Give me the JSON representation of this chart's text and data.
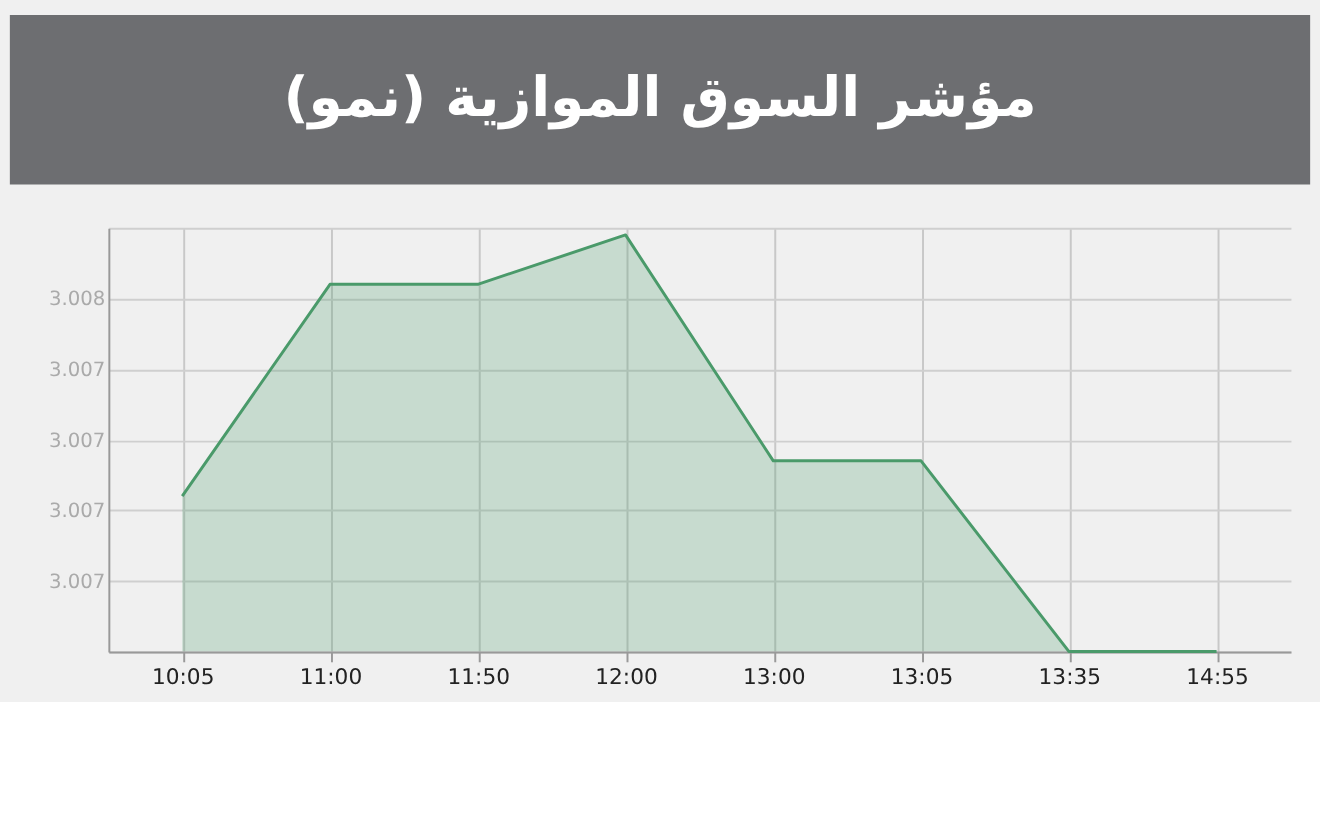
{
  "chart_data": {
    "type": "area",
    "title": "مؤشر السوق الموازية (نمو)",
    "categories": [
      "10:05",
      "11:00",
      "11:50",
      "12:00",
      "13:00",
      "13:05",
      "13:35",
      "14:55"
    ],
    "series": [
      {
        "color": "#4a9a6a",
        "values": [
          3.00722,
          3.00752,
          3.00752,
          3.00759,
          3.00727,
          3.00727,
          3.007,
          3.007
        ]
      }
    ],
    "ylim": [
      3.007,
      3.0076
    ],
    "yticks": [
      {
        "value": 3.007,
        "label": null
      },
      {
        "value": 3.0071,
        "label": "3.007"
      },
      {
        "value": 3.0072,
        "label": "3.007"
      },
      {
        "value": 3.0073,
        "label": "3.007"
      },
      {
        "value": 3.0074,
        "label": "3.007"
      },
      {
        "value": 3.0075,
        "label": "3.008"
      },
      {
        "value": 3.0076,
        "label": null
      }
    ],
    "grid": true,
    "legend": false
  }
}
